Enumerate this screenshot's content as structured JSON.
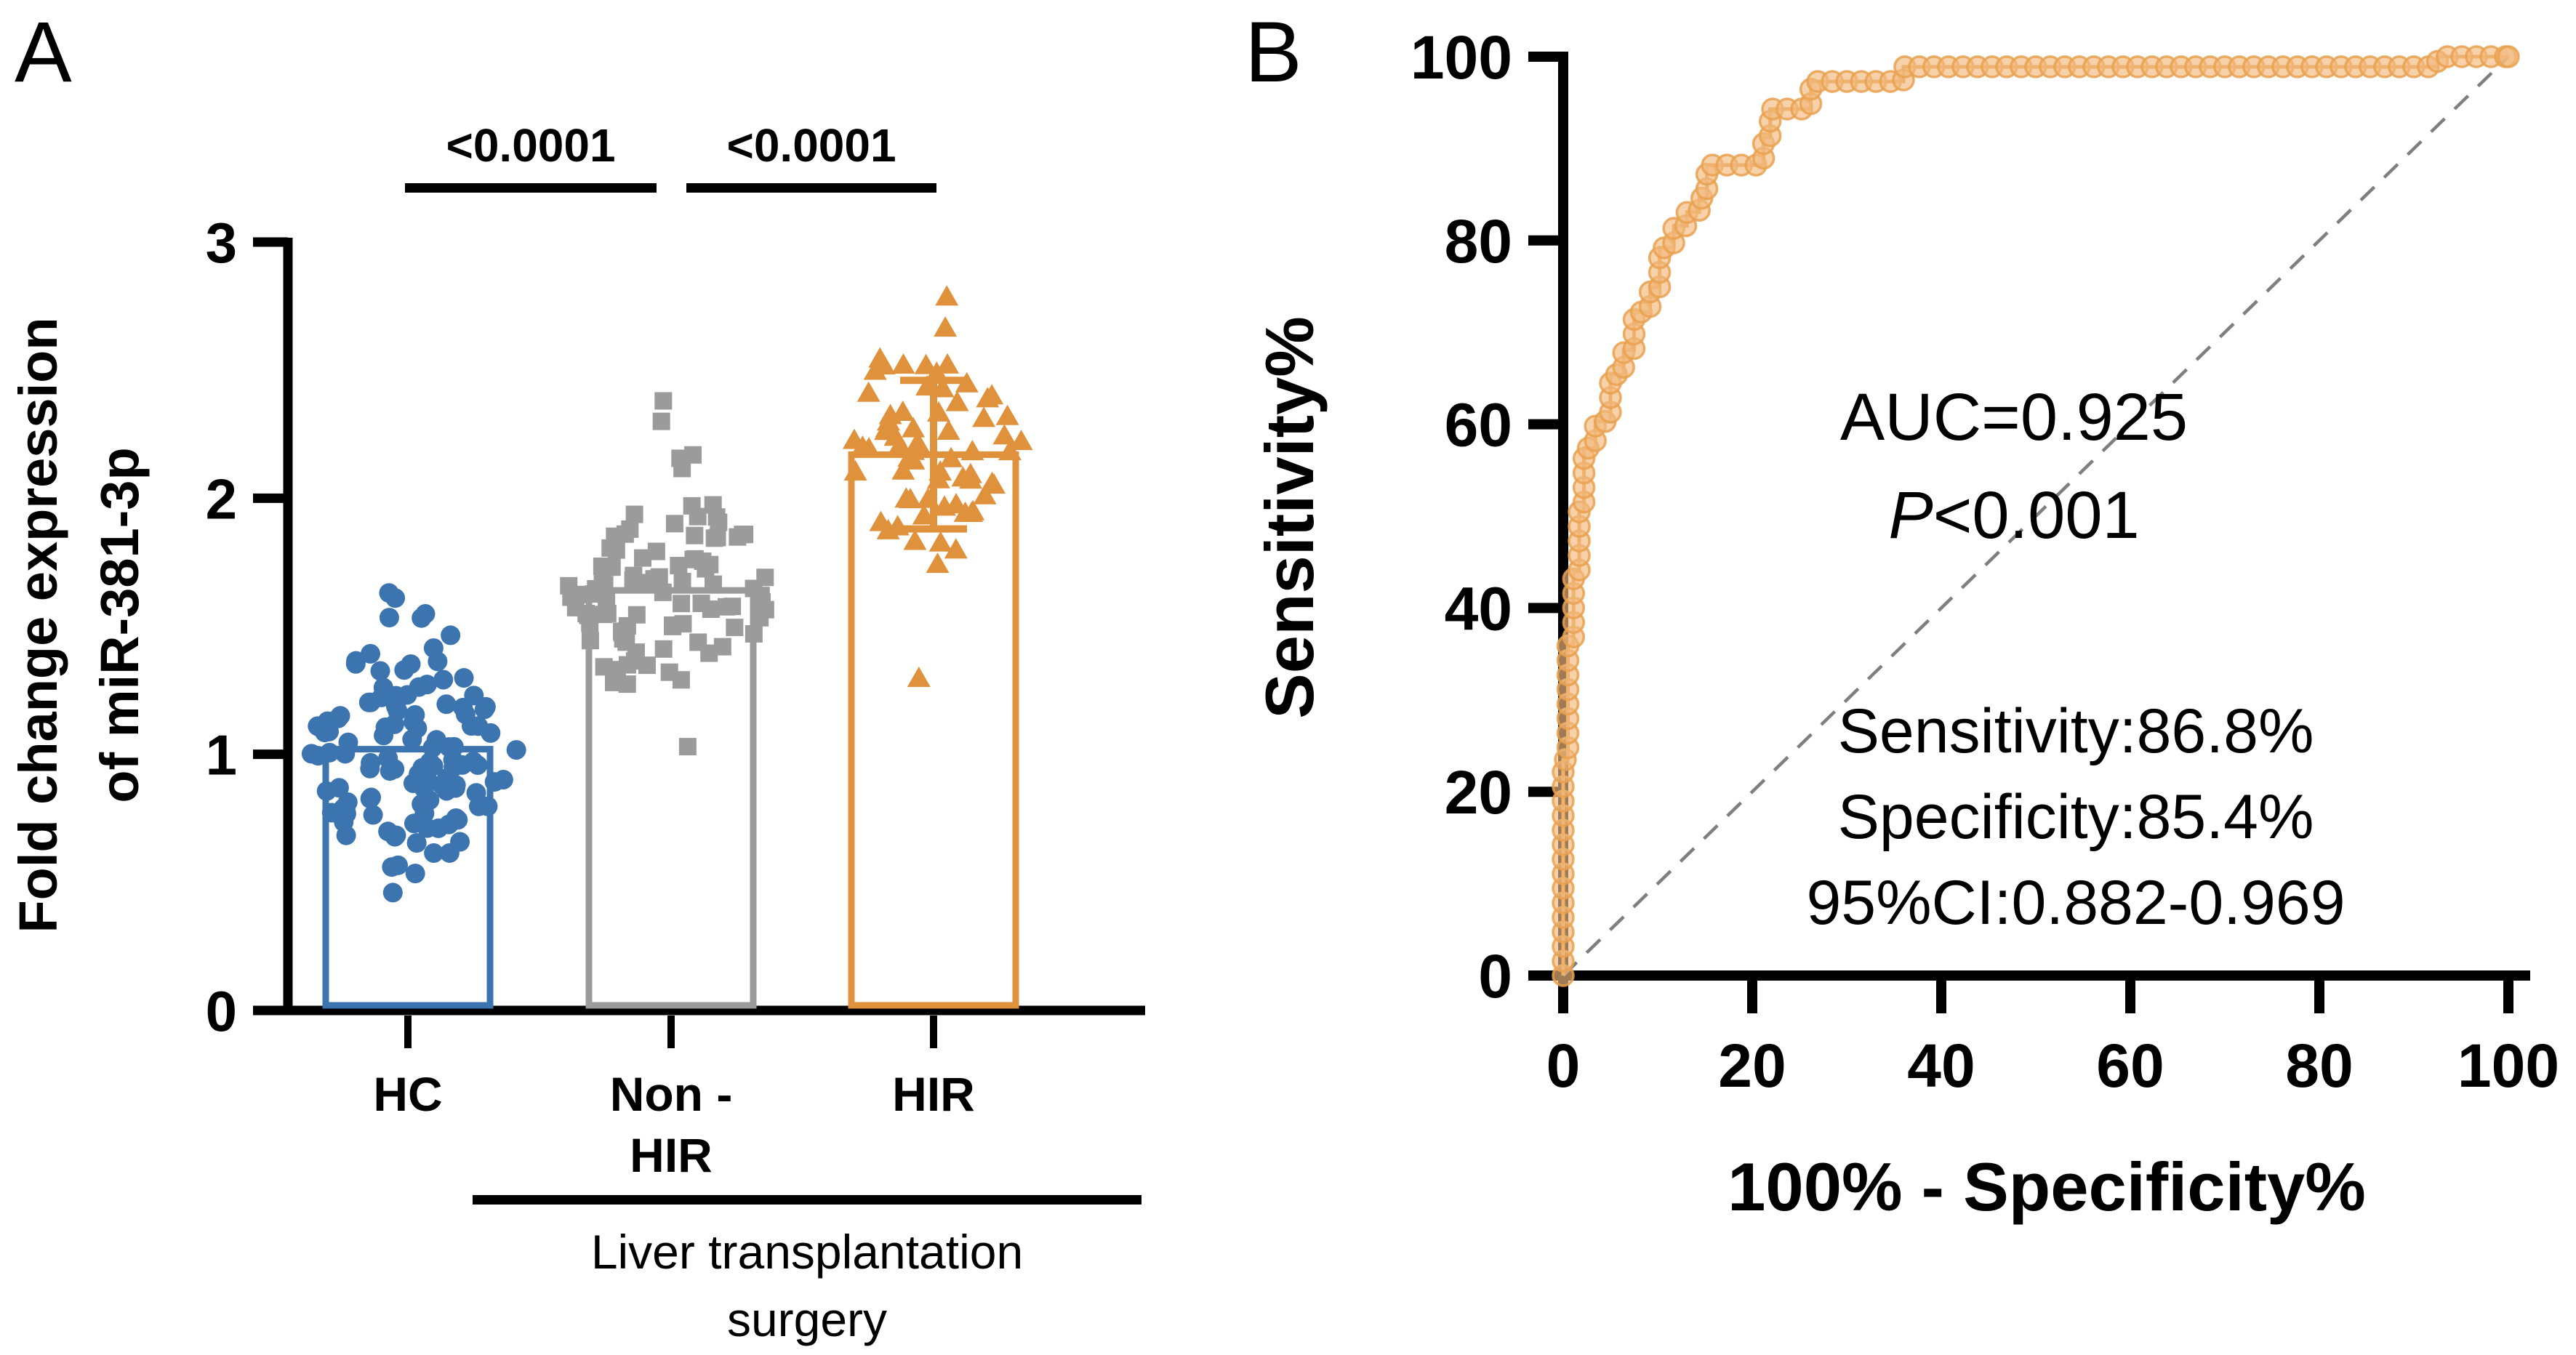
{
  "figure": {
    "panels": [
      {
        "label": "A"
      },
      {
        "label": "B"
      }
    ]
  },
  "colors": {
    "hc_blue": "#3C74B0",
    "non_hir_gray": "#9B9B9B",
    "hir_orange": "#E0913C",
    "roc_marker_fill": "#F2B97E",
    "roc_marker_edge": "#E9A14F",
    "roc_line": "#E9A14F",
    "diagonal_gray": "#7F7F7F",
    "axis_black": "#000000"
  },
  "chart_data": [
    {
      "type": "scatter",
      "panel": "A",
      "title": "",
      "ylabel_line1": "Fold change expression",
      "ylabel_line2": "of miR-381-3p",
      "ylim": [
        0,
        3
      ],
      "yticks": [
        0,
        1,
        2,
        3
      ],
      "categories": [
        {
          "line1": "HC",
          "line2": ""
        },
        {
          "line1": "Non -",
          "line2": "HIR"
        },
        {
          "line1": "HIR",
          "line2": ""
        }
      ],
      "groups": [
        {
          "name": "HC",
          "marker": "circle",
          "color": "#3C74B0",
          "n": 118,
          "mean": 1.02,
          "sd": 0.22,
          "min": 0.52,
          "max": 1.66,
          "jitter": 155,
          "seed": 11,
          "bar_mean": 1.02,
          "outliers": [
            0.46,
            0.56,
            1.63
          ]
        },
        {
          "name": "Non-HIR",
          "marker": "square",
          "color": "#9B9B9B",
          "n": 92,
          "mean": 1.64,
          "sd": 0.24,
          "min": 1.26,
          "max": 2.41,
          "jitter": 145,
          "seed": 23,
          "bar_mean": 1.64,
          "outliers": [
            1.03,
            2.38,
            2.3
          ]
        },
        {
          "name": "HIR",
          "marker": "triangle",
          "color": "#E0913C",
          "n": 66,
          "mean": 2.2,
          "sd": 0.26,
          "min": 1.72,
          "max": 2.86,
          "jitter": 125,
          "seed": 37,
          "bar_mean": 2.17,
          "outliers": [
            1.3
          ],
          "error_bar": {
            "center": 2.17,
            "upper": 2.46,
            "lower": 1.88
          }
        }
      ],
      "significance": [
        {
          "label": "<0.0001",
          "from": 0,
          "to": 1
        },
        {
          "label": "<0.0001",
          "from": 1,
          "to": 2
        }
      ],
      "group_annotation": {
        "line1": "Liver transplantation",
        "line2": "surgery",
        "spans": [
          1,
          2
        ]
      }
    },
    {
      "type": "line",
      "panel": "B",
      "xlabel": "100% - Specificity%",
      "ylabel": "Sensitivity%",
      "xlim": [
        0,
        100
      ],
      "ylim": [
        0,
        100
      ],
      "xticks": [
        0,
        20,
        40,
        60,
        80,
        100
      ],
      "yticks": [
        0,
        20,
        40,
        60,
        80,
        100
      ],
      "legend": "none",
      "grid": false,
      "roc_steps": [
        [
          0,
          0
        ],
        [
          0,
          23.5
        ],
        [
          0.5,
          23.5
        ],
        [
          0.5,
          36
        ],
        [
          1.1,
          36
        ],
        [
          1.1,
          44
        ],
        [
          1.7,
          44
        ],
        [
          1.7,
          50.5
        ],
        [
          2.2,
          50.5
        ],
        [
          2.2,
          57.4
        ],
        [
          3.4,
          57.4
        ],
        [
          3.4,
          60.3
        ],
        [
          5,
          60.3
        ],
        [
          5,
          65.4
        ],
        [
          6.4,
          65.4
        ],
        [
          6.4,
          68.1
        ],
        [
          7.5,
          68.1
        ],
        [
          7.5,
          72.2
        ],
        [
          9.2,
          72.2
        ],
        [
          9.2,
          74.9
        ],
        [
          10.2,
          74.9
        ],
        [
          10.2,
          79.2
        ],
        [
          11.7,
          79.2
        ],
        [
          11.7,
          81.6
        ],
        [
          13.1,
          81.6
        ],
        [
          13.1,
          83.1
        ],
        [
          14.4,
          83.1
        ],
        [
          14.4,
          84.6
        ],
        [
          15.2,
          84.6
        ],
        [
          15.2,
          88.2
        ],
        [
          21.2,
          88.2
        ],
        [
          21.2,
          91.2
        ],
        [
          21.9,
          91.2
        ],
        [
          21.9,
          94.3
        ],
        [
          26.2,
          94.3
        ],
        [
          26.2,
          97.3
        ],
        [
          36,
          97.3
        ],
        [
          36,
          98.9
        ],
        [
          92.5,
          98.9
        ],
        [
          92.5,
          100
        ],
        [
          100,
          100
        ]
      ],
      "diagonal": [
        [
          0,
          0
        ],
        [
          100,
          100
        ]
      ],
      "annotations": {
        "auc": "AUC=0.925",
        "p_prefix": "P",
        "p_value": "<0.001",
        "stat_lines": [
          "Sensitivity:86.8%",
          "Specificity:85.4%",
          "95%CI:0.882-0.969"
        ]
      }
    }
  ]
}
